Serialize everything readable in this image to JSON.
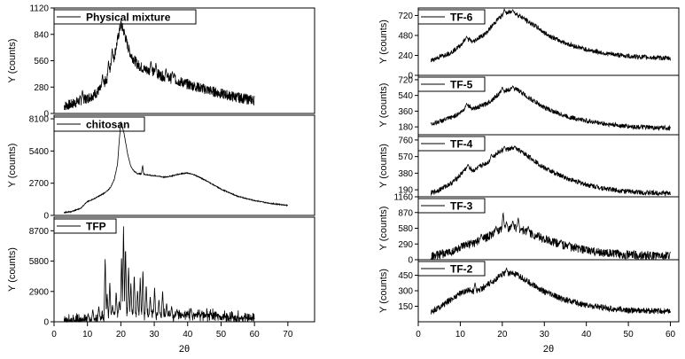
{
  "figure": {
    "left_xlabel": "2θ",
    "right_xlabel": "2θ",
    "ylabel": "Y (counts)"
  },
  "chart_data": [
    {
      "type": "line",
      "legend": "Physical mixture",
      "ylabel": "Y (counts)",
      "yticks": [
        0,
        280,
        560,
        840,
        1120
      ],
      "ylim": [
        0,
        1120
      ],
      "xlim": [
        0,
        78
      ],
      "x": [
        3,
        5,
        8,
        10,
        12,
        14,
        16,
        17,
        18,
        19,
        20,
        21,
        22,
        23,
        25,
        27,
        29,
        31,
        33,
        35,
        40,
        45,
        50,
        55,
        60
      ],
      "y": [
        80,
        95,
        140,
        160,
        200,
        260,
        380,
        500,
        600,
        780,
        950,
        860,
        720,
        620,
        520,
        470,
        450,
        420,
        390,
        370,
        310,
        260,
        210,
        170,
        140
      ],
      "noise": 0.05,
      "spikes": [
        [
          8.5,
          250
        ],
        [
          14.5,
          420
        ],
        [
          16.3,
          560
        ],
        [
          17.4,
          700
        ],
        [
          29,
          560
        ],
        [
          30.5,
          540
        ],
        [
          33.5,
          480
        ],
        [
          35.4,
          450
        ],
        [
          36,
          430
        ]
      ]
    },
    {
      "type": "line",
      "legend": "chitosan",
      "ylabel": "Y (counts)",
      "yticks": [
        0,
        2700,
        5400,
        8100
      ],
      "ylim": [
        0,
        8400
      ],
      "xlim": [
        0,
        78
      ],
      "x": [
        3,
        5,
        8,
        9,
        10,
        12,
        14,
        16,
        17,
        18,
        19,
        19.5,
        20,
        21,
        22,
        23,
        24,
        25,
        27,
        29,
        31,
        33,
        35,
        38,
        40,
        42,
        45,
        50,
        55,
        60,
        65,
        70
      ],
      "y": [
        250,
        300,
        600,
        900,
        1150,
        1400,
        1700,
        2050,
        2400,
        3000,
        4300,
        6200,
        7900,
        6800,
        5200,
        4100,
        3700,
        3500,
        3450,
        3350,
        3300,
        3200,
        3300,
        3500,
        3550,
        3400,
        3000,
        2200,
        1600,
        1250,
        1000,
        850
      ],
      "noise": 0.005,
      "spikes": [
        [
          26.5,
          4200
        ]
      ]
    },
    {
      "type": "line",
      "legend": "TFP",
      "ylabel": "Y (counts)",
      "yticks": [
        0,
        2900,
        5800,
        8700
      ],
      "ylim": [
        0,
        10000
      ],
      "xlim": [
        0,
        78
      ],
      "x": [
        3,
        10,
        12,
        14,
        16,
        18,
        20,
        22,
        24,
        26,
        28,
        30,
        32,
        34,
        36,
        38,
        40,
        42,
        45,
        50,
        55,
        60
      ],
      "y": [
        80,
        150,
        250,
        350,
        500,
        700,
        800,
        750,
        700,
        700,
        650,
        600,
        600,
        580,
        560,
        560,
        650,
        700,
        650,
        500,
        400,
        300
      ],
      "noise": 0.3,
      "spikes": [
        [
          10.2,
          800
        ],
        [
          11.6,
          1200
        ],
        [
          13.4,
          1500
        ],
        [
          15.3,
          6200
        ],
        [
          15.9,
          2800
        ],
        [
          16.7,
          3900
        ],
        [
          17.5,
          1600
        ],
        [
          18.6,
          2900
        ],
        [
          19.5,
          2000
        ],
        [
          20.2,
          6500
        ],
        [
          20.8,
          9200
        ],
        [
          21.4,
          7300
        ],
        [
          22.3,
          5400
        ],
        [
          23.0,
          3800
        ],
        [
          24.0,
          4600
        ],
        [
          25.0,
          3100
        ],
        [
          25.8,
          4200
        ],
        [
          26.6,
          5100
        ],
        [
          27.6,
          3600
        ],
        [
          28.8,
          2500
        ],
        [
          30.1,
          3300
        ],
        [
          31.4,
          2200
        ],
        [
          32.5,
          3000
        ],
        [
          33.7,
          1800
        ],
        [
          35.2,
          1500
        ],
        [
          36.8,
          1200
        ],
        [
          41.0,
          1300
        ]
      ]
    },
    {
      "type": "line",
      "legend": "TF-6",
      "ylabel": "Y (counts)",
      "yticks": [
        0,
        240,
        480,
        720
      ],
      "ylim": [
        0,
        810
      ],
      "xlim": [
        0,
        62
      ],
      "x": [
        3,
        5,
        8,
        10,
        11,
        12,
        13,
        14,
        15,
        16,
        17,
        18,
        19,
        20,
        21,
        22,
        23,
        24,
        25,
        26,
        28,
        30,
        33,
        36,
        40,
        45,
        50,
        55,
        60
      ],
      "y": [
        180,
        220,
        280,
        360,
        420,
        430,
        400,
        440,
        470,
        500,
        560,
        620,
        680,
        720,
        750,
        760,
        745,
        720,
        690,
        650,
        590,
        510,
        430,
        370,
        310,
        260,
        230,
        215,
        205
      ],
      "noise": 0.035,
      "spikes": [
        [
          11.5,
          470
        ],
        [
          20.5,
          800
        ],
        [
          22.5,
          790
        ]
      ]
    },
    {
      "type": "line",
      "legend": "TF-5",
      "ylabel": "Y (counts)",
      "yticks": [
        180,
        360,
        540,
        720
      ],
      "ylim": [
        90,
        770
      ],
      "xlim": [
        0,
        62
      ],
      "x": [
        3,
        5,
        8,
        10,
        11,
        12,
        13,
        14,
        15,
        16,
        17,
        18,
        19,
        20,
        21,
        22,
        23,
        24,
        25,
        26,
        28,
        30,
        33,
        36,
        40,
        45,
        50,
        55,
        60
      ],
      "y": [
        210,
        240,
        290,
        340,
        390,
        420,
        390,
        400,
        420,
        440,
        470,
        510,
        550,
        580,
        600,
        610,
        610,
        595,
        560,
        520,
        460,
        400,
        340,
        290,
        250,
        210,
        185,
        172,
        165
      ],
      "noise": 0.04,
      "spikes": [
        [
          11.5,
          450
        ],
        [
          20,
          640
        ],
        [
          22.5,
          650
        ]
      ]
    },
    {
      "type": "line",
      "legend": "TF-4",
      "ylabel": "Y (counts)",
      "yticks": [
        190,
        380,
        570,
        760
      ],
      "ylim": [
        110,
        820
      ],
      "xlim": [
        0,
        62
      ],
      "x": [
        3,
        5,
        8,
        10,
        11,
        12,
        13,
        14,
        15,
        16,
        17,
        18,
        19,
        20,
        21,
        22,
        23,
        24,
        25,
        26,
        28,
        30,
        33,
        36,
        40,
        45,
        50,
        55,
        60
      ],
      "y": [
        150,
        190,
        270,
        360,
        420,
        450,
        410,
        430,
        470,
        490,
        520,
        580,
        620,
        640,
        650,
        660,
        660,
        640,
        610,
        580,
        510,
        440,
        370,
        310,
        250,
        200,
        170,
        155,
        150
      ],
      "noise": 0.04,
      "spikes": [
        [
          11.8,
          480
        ],
        [
          17.4,
          600
        ],
        [
          20.5,
          690
        ],
        [
          23,
          690
        ]
      ]
    },
    {
      "type": "line",
      "legend": "TF-3",
      "ylabel": "Y (counts)",
      "yticks": [
        0,
        290,
        580,
        870,
        1160
      ],
      "ylim": [
        0,
        1160
      ],
      "xlim": [
        0,
        62
      ],
      "x": [
        3,
        5,
        8,
        10,
        12,
        14,
        16,
        18,
        20,
        22,
        24,
        26,
        28,
        30,
        33,
        36,
        40,
        45,
        50,
        55,
        60
      ],
      "y": [
        60,
        90,
        150,
        220,
        280,
        330,
        400,
        480,
        560,
        600,
        570,
        510,
        440,
        380,
        300,
        240,
        170,
        120,
        90,
        75,
        70
      ],
      "noise": 0.07,
      "spikes": [
        [
          15,
          480
        ],
        [
          18.5,
          620
        ],
        [
          20.2,
          880
        ],
        [
          21,
          700
        ],
        [
          22.5,
          720
        ],
        [
          23.8,
          780
        ],
        [
          26.2,
          620
        ],
        [
          34,
          370
        ],
        [
          36,
          320
        ]
      ]
    },
    {
      "type": "line",
      "legend": "TF-2",
      "ylabel": "Y (counts)",
      "yticks": [
        150,
        300,
        450
      ],
      "ylim": [
        0,
        600
      ],
      "xlim": [
        0,
        62
      ],
      "x": [
        3,
        5,
        8,
        10,
        12,
        13,
        14,
        15,
        16,
        17,
        18,
        19,
        20,
        21,
        22,
        23,
        24,
        25,
        26,
        28,
        30,
        33,
        36,
        40,
        45,
        50,
        55,
        60
      ],
      "y": [
        100,
        140,
        220,
        280,
        310,
        290,
        300,
        320,
        340,
        370,
        400,
        430,
        460,
        470,
        470,
        460,
        440,
        420,
        390,
        340,
        290,
        240,
        200,
        160,
        130,
        110,
        105,
        100
      ],
      "noise": 0.05,
      "spikes": [
        [
          13.5,
          380
        ],
        [
          21,
          520
        ]
      ]
    }
  ],
  "xaxes": {
    "left": {
      "ticks": [
        0,
        10,
        20,
        30,
        40,
        50,
        60,
        70
      ],
      "label": "2θ"
    },
    "right": {
      "ticks": [
        0,
        10,
        20,
        30,
        40,
        50,
        60
      ],
      "label": "2θ"
    }
  }
}
